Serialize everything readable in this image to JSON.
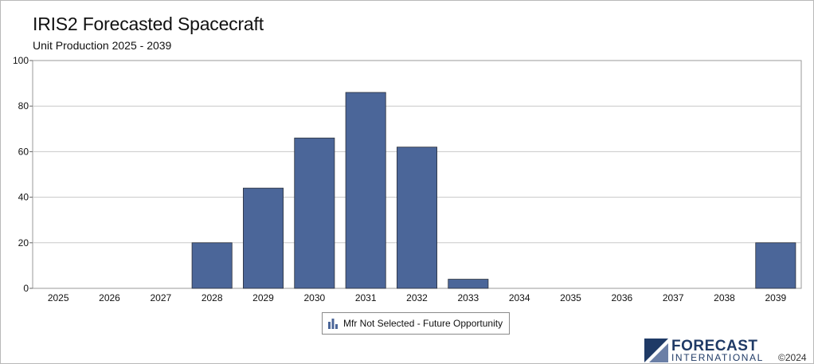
{
  "chart_data": {
    "type": "bar",
    "title": "IRIS2 Forecasted Spacecraft",
    "subtitle": "Unit Production 2025 - 2039",
    "categories": [
      "2025",
      "2026",
      "2027",
      "2028",
      "2029",
      "2030",
      "2031",
      "2032",
      "2033",
      "2034",
      "2035",
      "2036",
      "2037",
      "2038",
      "2039"
    ],
    "series": [
      {
        "name": "Mfr Not Selected - Future Opportunity",
        "color": "#4b6699",
        "values": [
          0,
          0,
          0,
          20,
          44,
          66,
          86,
          62,
          4,
          0,
          0,
          0,
          0,
          0,
          20
        ]
      }
    ],
    "ylim": [
      0,
      100
    ],
    "yticks": [
      "0",
      "20",
      "40",
      "60",
      "80",
      "100"
    ],
    "grid": true,
    "legend_position": "bottom-center"
  },
  "branding": {
    "logo_line1": "FORECAST",
    "logo_line2": "INTERNATIONAL",
    "copyright": "©2024",
    "logo_color": "#1f3a66"
  }
}
